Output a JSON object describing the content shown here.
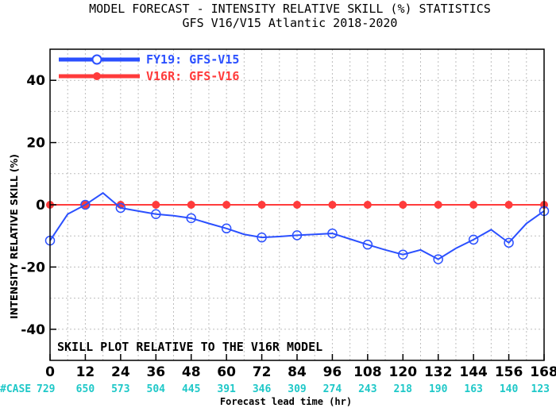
{
  "title_line1": "MODEL FORECAST - INTENSITY RELATIVE SKILL (%) STATISTICS",
  "title_line2": "GFS V16/V15 Atlantic 2018-2020",
  "annotation": "SKILL PLOT RELATIVE TO THE V16R MODEL",
  "case_label": "#CASE",
  "colors": {
    "series1": "#2b50ff",
    "series2": "#ff3b3b",
    "cases": "#1fc8c8",
    "zero_line": "#8b0000"
  },
  "chart_data": {
    "type": "line",
    "title": "MODEL FORECAST - INTENSITY RELATIVE SKILL (%) STATISTICS",
    "subtitle": "GFS V16/V15 Atlantic 2018-2020",
    "xlabel": "Forecast lead time (hr)",
    "ylabel": "INTENSITY RELATIVE SKILL (%)",
    "xlim": [
      0,
      168
    ],
    "ylim": [
      -50,
      50
    ],
    "xticks": [
      0,
      12,
      24,
      36,
      48,
      60,
      72,
      84,
      96,
      108,
      120,
      132,
      144,
      156,
      168
    ],
    "yticks": [
      -40,
      -20,
      0,
      20,
      40
    ],
    "grid": true,
    "legend_position": "top-left",
    "series": [
      {
        "name": "FY19: GFS-V15",
        "color": "#2b50ff",
        "x": [
          0,
          6,
          12,
          18,
          24,
          30,
          36,
          42,
          48,
          54,
          60,
          66,
          72,
          78,
          84,
          90,
          96,
          102,
          108,
          114,
          120,
          126,
          132,
          138,
          144,
          150,
          156,
          162,
          168
        ],
        "y": [
          -11.5,
          -3,
          0,
          3.8,
          -1,
          -2,
          -3,
          -3.5,
          -4.3,
          -6,
          -7.6,
          -9.5,
          -10.5,
          -10.2,
          -9.8,
          -9.5,
          -9.2,
          -11,
          -12.8,
          -14.5,
          -16,
          -14.5,
          -17.5,
          -14,
          -11.2,
          -8,
          -12.2,
          -6,
          -2
        ],
        "marker_x": [
          0,
          12,
          24,
          36,
          48,
          60,
          72,
          84,
          96,
          108,
          120,
          132,
          144,
          156,
          168
        ]
      },
      {
        "name": "V16R: GFS-V16",
        "color": "#ff3b3b",
        "x": [
          0,
          12,
          24,
          36,
          48,
          60,
          72,
          84,
          96,
          108,
          120,
          132,
          144,
          156,
          168
        ],
        "y": [
          0,
          0,
          0,
          0,
          0,
          0,
          0,
          0,
          0,
          0,
          0,
          0,
          0,
          0,
          0
        ]
      }
    ],
    "cases": [
      729,
      650,
      573,
      504,
      445,
      391,
      346,
      309,
      274,
      243,
      218,
      190,
      163,
      140,
      123
    ]
  }
}
